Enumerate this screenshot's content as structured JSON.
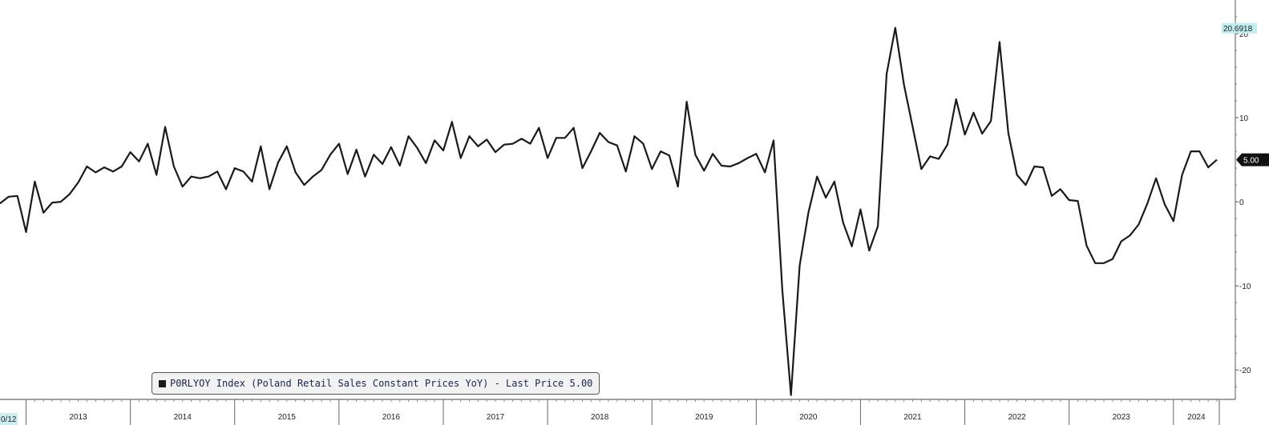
{
  "chart_data": {
    "type": "line",
    "legend": "P0RLYOY Index (Poland Retail Sales Constant Prices YoY) - Last Price 5.00",
    "left_edge_label": "0/12",
    "x_tick_labels": [
      "2013",
      "2014",
      "2015",
      "2016",
      "2017",
      "2018",
      "2019",
      "2020",
      "2021",
      "2022",
      "2023",
      "2024"
    ],
    "y_tick_labels": [
      "20",
      "10",
      "0",
      "-10",
      "-20"
    ],
    "y_ticks": [
      20,
      10,
      0,
      -10,
      -20
    ],
    "ylim": [
      -23.5,
      24
    ],
    "max_label": "20.6918",
    "last_label": "5.00",
    "line_color": "#1a1a1a",
    "x_start": "2012-10",
    "series": [
      {
        "values": [
          -0.2,
          0.6,
          0.7,
          -3.6,
          2.4,
          -1.3,
          -0.1,
          0,
          0.9,
          2.3,
          4.2,
          3.5,
          4.1,
          3.6,
          4.2,
          5.9,
          4.8,
          6.9,
          3.2,
          8.9,
          4.2,
          1.8,
          3.0,
          2.8,
          3.0,
          3.6,
          1.5,
          4.0,
          3.6,
          2.4,
          6.6,
          1.5,
          4.7,
          6.6,
          3.5,
          2.0,
          3.0,
          3.8,
          5.6,
          6.9,
          3.3,
          6.2,
          3.0,
          5.6,
          4.5,
          6.5,
          4.3,
          7.8,
          6.4,
          4.6,
          7.3,
          6.1,
          9.5,
          5.2,
          7.8,
          6.6,
          7.4,
          5.9,
          6.8,
          6.9,
          7.5,
          6.9,
          8.8,
          5.2,
          7.6,
          7.6,
          8.8,
          4.0,
          6.0,
          8.2,
          7.1,
          6.7,
          3.6,
          7.8,
          6.9,
          3.9,
          6.0,
          5.5,
          1.8,
          11.9,
          5.6,
          3.7,
          5.7,
          4.3,
          4.2,
          4.6,
          5.2,
          5.7,
          3.5,
          7.3,
          -10.5,
          -23.0,
          -7.6,
          -1.3,
          3.0,
          0.5,
          2.4,
          -2.5,
          -5.3,
          -0.9,
          -5.8,
          -2.9,
          15.2,
          20.6918,
          13.9,
          8.9,
          3.9,
          5.4,
          5.1,
          6.8,
          12.2,
          8.0,
          10.6,
          8.1,
          9.6,
          19.0,
          8.2,
          3.2,
          2.0,
          4.2,
          4.1,
          0.7,
          1.5,
          0.2,
          0.1,
          -5.2,
          -7.3,
          -7.3,
          -6.8,
          -4.7,
          -4.0,
          -2.7,
          -0.2,
          2.8,
          -0.3,
          -2.3,
          3.2,
          6.0,
          6.0,
          4.1,
          5.0
        ]
      }
    ]
  }
}
